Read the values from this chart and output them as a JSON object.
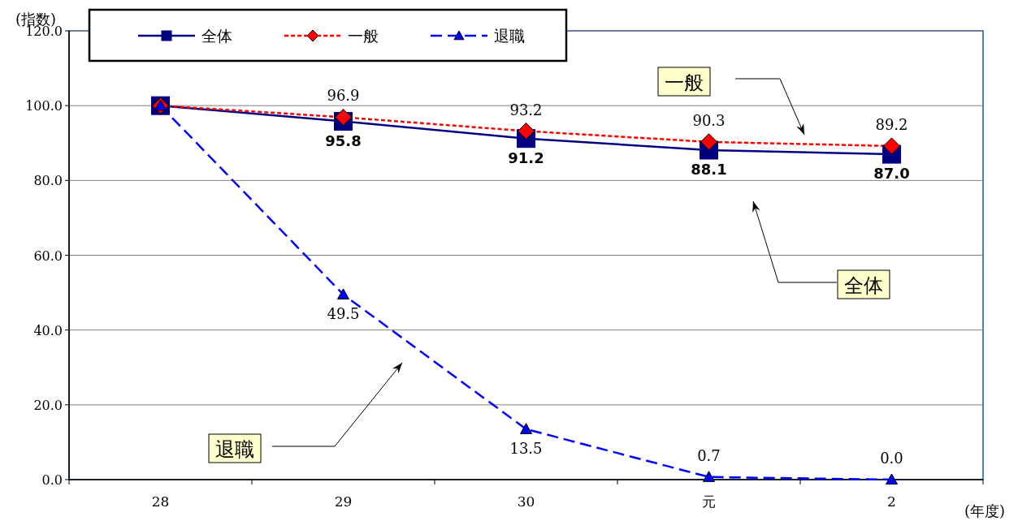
{
  "chart_data": {
    "type": "line",
    "ylabel": "(指数)",
    "xlabel": "(年度)",
    "categories": [
      "28",
      "29",
      "30",
      "元",
      "2"
    ],
    "series": [
      {
        "name": "全体",
        "color": "#000080",
        "marker": "square",
        "line_style": "solid",
        "values": [
          100,
          95.8,
          91.2,
          88.1,
          87.0
        ],
        "value_labels": [
          null,
          "95.8",
          "91.2",
          "88.1",
          "87.0"
        ]
      },
      {
        "name": "一般",
        "color": "#ff0000",
        "marker": "diamond",
        "line_style": "dotted",
        "values": [
          100,
          96.9,
          93.2,
          90.3,
          89.2
        ],
        "value_labels": [
          null,
          "96.9",
          "93.2",
          "90.3",
          "89.2"
        ]
      },
      {
        "name": "退職",
        "color": "#0000ff",
        "marker": "triangle",
        "line_style": "dashed",
        "values": [
          100,
          49.5,
          13.5,
          0.7,
          0.0
        ],
        "value_labels": [
          null,
          "49.5",
          "13.5",
          "0.7",
          "0.0"
        ]
      }
    ],
    "ylim": [
      0,
      120
    ],
    "yticks": [
      {
        "value": 0,
        "label": "0.0"
      },
      {
        "value": 20,
        "label": "20.0"
      },
      {
        "value": 40,
        "label": "40.0"
      },
      {
        "value": 60,
        "label": "60.0"
      },
      {
        "value": 80,
        "label": "80.0"
      },
      {
        "value": 100,
        "label": "100.0"
      },
      {
        "value": 120,
        "label": "120.0"
      }
    ],
    "grid": "y",
    "legend": "top left",
    "annotations": [
      "一般",
      "全体",
      "退職"
    ]
  }
}
